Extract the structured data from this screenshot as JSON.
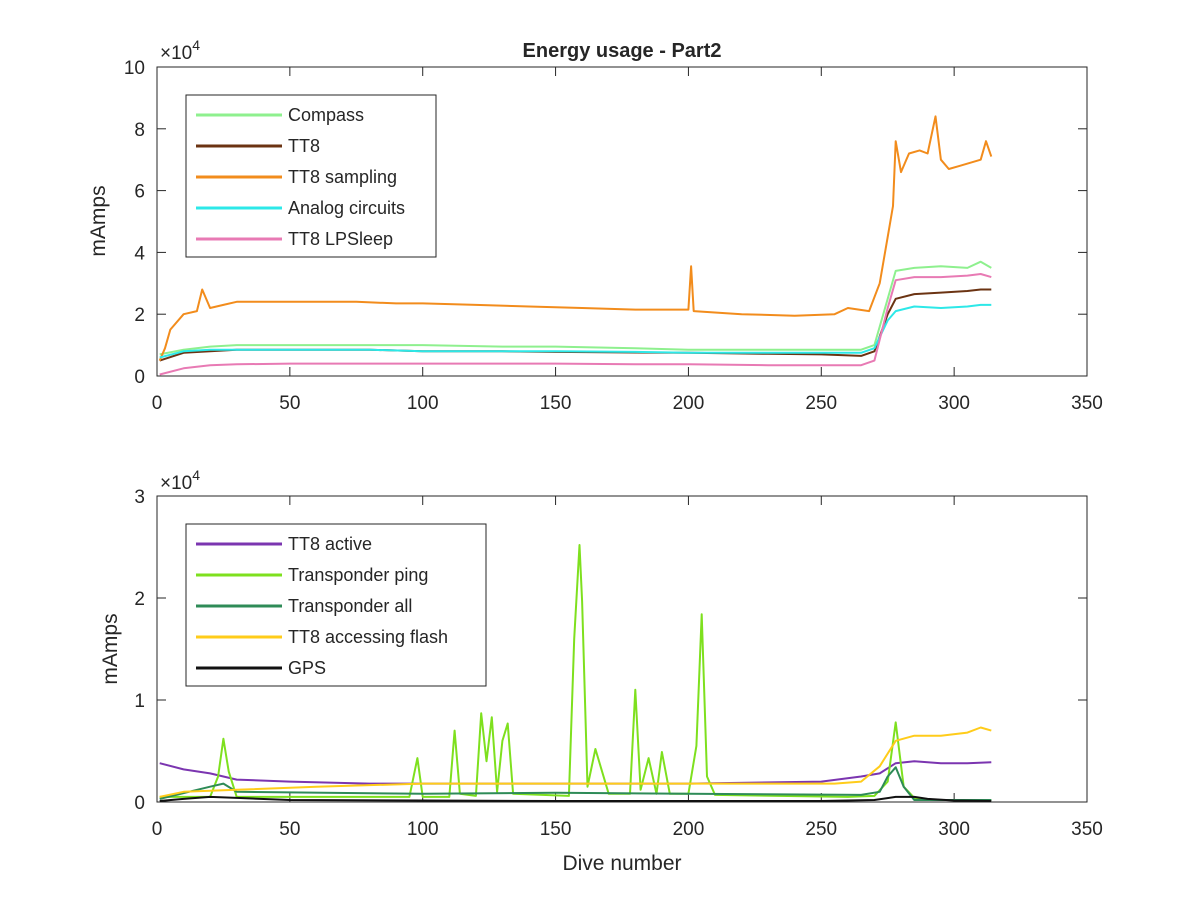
{
  "chart_data": [
    {
      "type": "line",
      "title": "Energy usage - Part2",
      "xlabel": "",
      "ylabel": "mAmps",
      "exponent_label": "×10",
      "exponent_power": "4",
      "xlim": [
        0,
        350
      ],
      "ylim": [
        0,
        100000
      ],
      "xticks": [
        0,
        50,
        100,
        150,
        200,
        250,
        300,
        350
      ],
      "yticks": [
        0,
        20000,
        40000,
        60000,
        80000,
        100000
      ],
      "ytick_labels": [
        "0",
        "2",
        "4",
        "6",
        "8",
        "10"
      ],
      "legend_position": "top-left",
      "series": [
        {
          "name": "Compass",
          "color": "#8ef08e",
          "x": [
            1,
            10,
            20,
            30,
            50,
            80,
            100,
            130,
            150,
            180,
            200,
            230,
            250,
            265,
            270,
            275,
            278,
            285,
            295,
            305,
            310,
            314
          ],
          "y": [
            7000,
            8500,
            9500,
            10000,
            10000,
            10000,
            10000,
            9500,
            9500,
            9000,
            8500,
            8500,
            8500,
            8500,
            10000,
            25000,
            34000,
            35000,
            35500,
            35000,
            37000,
            35000
          ]
        },
        {
          "name": "TT8",
          "color": "#6b3312",
          "x": [
            1,
            10,
            20,
            30,
            50,
            80,
            100,
            130,
            150,
            180,
            200,
            230,
            250,
            265,
            270,
            275,
            278,
            285,
            295,
            305,
            310,
            314
          ],
          "y": [
            5000,
            7500,
            8000,
            8500,
            8500,
            8500,
            8000,
            8000,
            7800,
            7600,
            7500,
            7200,
            7000,
            6500,
            8000,
            20000,
            25000,
            26500,
            27000,
            27500,
            28000,
            28000
          ]
        },
        {
          "name": "TT8 sampling",
          "color": "#f28c1c",
          "x": [
            1,
            3,
            5,
            10,
            15,
            17,
            20,
            25,
            30,
            40,
            50,
            60,
            75,
            90,
            100,
            120,
            140,
            160,
            180,
            200,
            201,
            202,
            220,
            240,
            255,
            260,
            268,
            272,
            275,
            277,
            278,
            280,
            283,
            287,
            290,
            293,
            295,
            298,
            302,
            306,
            310,
            312,
            314
          ],
          "y": [
            5000,
            9000,
            15000,
            20000,
            21000,
            28000,
            22000,
            23000,
            24000,
            24000,
            24000,
            24000,
            24000,
            23500,
            23500,
            23000,
            22500,
            22000,
            21500,
            21500,
            35500,
            21000,
            20000,
            19500,
            20000,
            22000,
            21000,
            30000,
            45000,
            55000,
            76000,
            66000,
            72000,
            73000,
            72000,
            84000,
            70000,
            67000,
            68000,
            69000,
            70000,
            76000,
            71000
          ]
        },
        {
          "name": "Analog circuits",
          "color": "#2de8e8",
          "x": [
            1,
            10,
            20,
            30,
            50,
            80,
            100,
            130,
            150,
            180,
            200,
            230,
            250,
            265,
            270,
            275,
            278,
            285,
            295,
            305,
            310,
            314
          ],
          "y": [
            6000,
            8000,
            8500,
            8500,
            8500,
            8500,
            8000,
            8000,
            8000,
            7800,
            7500,
            7500,
            7500,
            7500,
            9000,
            18000,
            21000,
            22500,
            22000,
            22500,
            23000,
            23000
          ]
        },
        {
          "name": "TT8 LPSleep",
          "color": "#e87ab4",
          "x": [
            1,
            10,
            20,
            30,
            50,
            80,
            100,
            130,
            150,
            180,
            200,
            230,
            250,
            265,
            270,
            275,
            278,
            285,
            295,
            305,
            310,
            314
          ],
          "y": [
            500,
            2500,
            3500,
            3800,
            4000,
            4000,
            4000,
            4000,
            4000,
            3800,
            3800,
            3500,
            3500,
            3500,
            5000,
            22000,
            31000,
            32000,
            32000,
            32500,
            33000,
            32000
          ]
        }
      ]
    },
    {
      "type": "line",
      "title": "",
      "xlabel": "Dive number",
      "ylabel": "mAmps",
      "exponent_label": "×10",
      "exponent_power": "4",
      "xlim": [
        0,
        350
      ],
      "ylim": [
        0,
        30000
      ],
      "xticks": [
        0,
        50,
        100,
        150,
        200,
        250,
        300,
        350
      ],
      "yticks": [
        0,
        10000,
        20000,
        30000
      ],
      "ytick_labels": [
        "0",
        "1",
        "2",
        "3"
      ],
      "legend_position": "top-left",
      "series": [
        {
          "name": "TT8 active",
          "color": "#7b35b0",
          "x": [
            1,
            10,
            20,
            25,
            30,
            50,
            80,
            100,
            150,
            200,
            250,
            265,
            272,
            278,
            285,
            295,
            305,
            314
          ],
          "y": [
            3800,
            3200,
            2800,
            2500,
            2200,
            2000,
            1800,
            1800,
            1800,
            1800,
            2000,
            2500,
            2800,
            3800,
            4000,
            3800,
            3800,
            3900
          ]
        },
        {
          "name": "Transponder ping",
          "color": "#7ee01e",
          "x": [
            1,
            20,
            23,
            25,
            27,
            30,
            95,
            98,
            100,
            110,
            112,
            114,
            120,
            122,
            124,
            126,
            128,
            130,
            132,
            134,
            155,
            157,
            159,
            160,
            162,
            165,
            170,
            178,
            180,
            182,
            185,
            188,
            190,
            193,
            200,
            203,
            205,
            207,
            210,
            260,
            270,
            275,
            278,
            281,
            285,
            290,
            314
          ],
          "y": [
            500,
            500,
            2500,
            6200,
            3000,
            500,
            500,
            4300,
            500,
            500,
            7000,
            800,
            600,
            8700,
            4000,
            8300,
            1000,
            6000,
            7700,
            800,
            600,
            16000,
            25200,
            19700,
            1500,
            5200,
            800,
            800,
            11000,
            1200,
            4300,
            800,
            4900,
            800,
            800,
            5500,
            18400,
            2500,
            700,
            500,
            600,
            2000,
            7800,
            1500,
            400,
            200,
            200
          ]
        },
        {
          "name": "Transponder all",
          "color": "#2e8b57",
          "x": [
            1,
            20,
            25,
            30,
            100,
            150,
            200,
            265,
            272,
            275,
            278,
            281,
            285,
            314
          ],
          "y": [
            300,
            1500,
            1800,
            1000,
            800,
            900,
            800,
            700,
            1000,
            2500,
            3400,
            1500,
            200,
            200
          ]
        },
        {
          "name": "TT8 accessing flash",
          "color": "#ffcc1a",
          "x": [
            1,
            10,
            30,
            60,
            100,
            150,
            200,
            250,
            255,
            265,
            272,
            278,
            285,
            295,
            305,
            310,
            314
          ],
          "y": [
            500,
            1000,
            1200,
            1500,
            1800,
            1800,
            1800,
            1800,
            1800,
            2000,
            3500,
            6000,
            6500,
            6500,
            6800,
            7300,
            7000
          ]
        },
        {
          "name": "GPS",
          "color": "#111111",
          "x": [
            1,
            10,
            20,
            30,
            50,
            100,
            150,
            200,
            250,
            270,
            278,
            285,
            290,
            300,
            314
          ],
          "y": [
            100,
            300,
            500,
            400,
            200,
            150,
            100,
            100,
            100,
            200,
            500,
            500,
            300,
            150,
            100
          ]
        }
      ]
    }
  ]
}
